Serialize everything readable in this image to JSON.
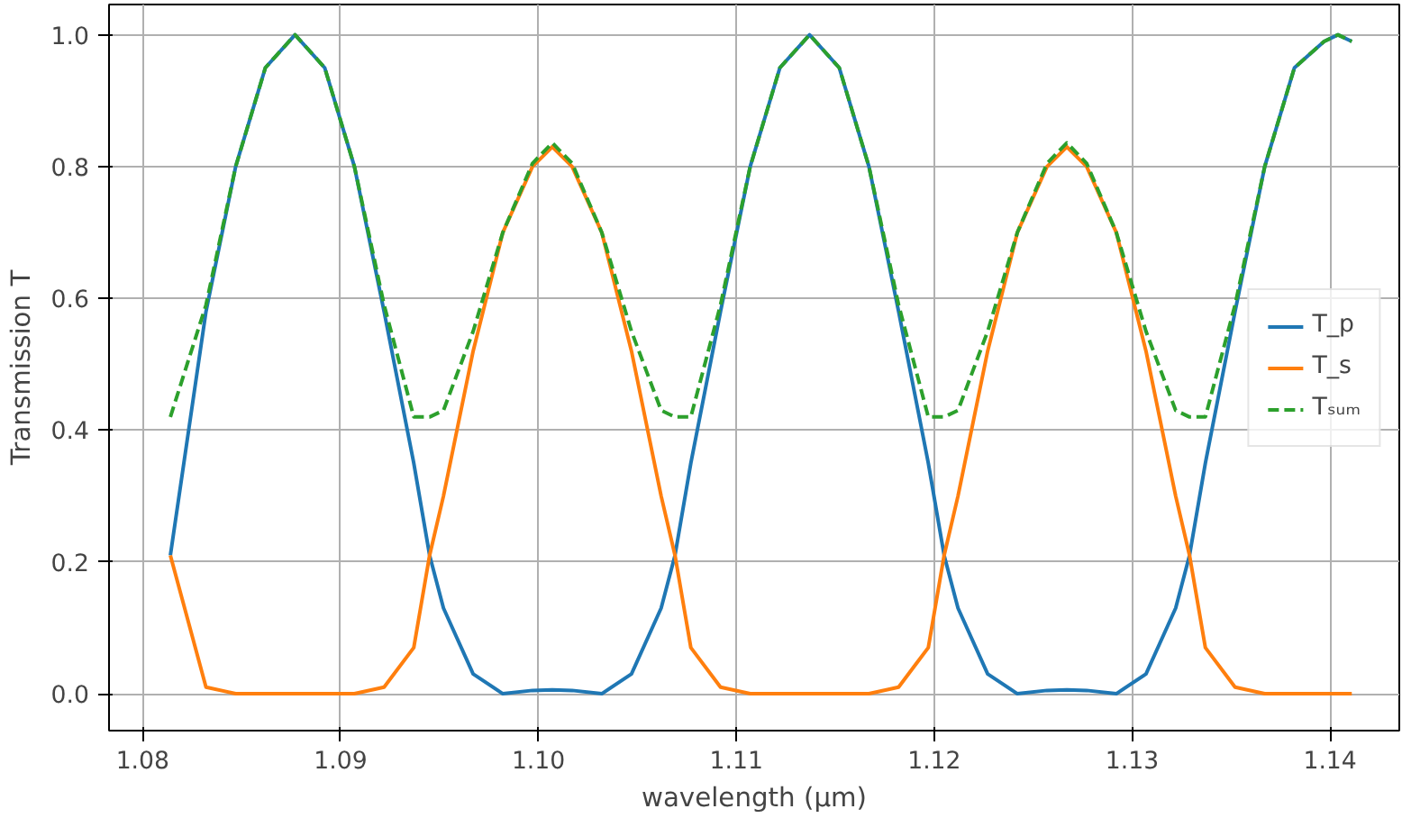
{
  "chart_data": {
    "type": "line",
    "xlabel": "wavelength (µm)",
    "ylabel": "Transmission T",
    "x": [
      1.0814,
      1.0832,
      1.0847,
      1.0862,
      1.0877,
      1.0892,
      1.0907,
      1.0922,
      1.0937,
      1.0945,
      1.0952,
      1.0967,
      1.0982,
      1.0997,
      1.1007,
      1.1017,
      1.1032,
      1.1047,
      1.1062,
      1.1069,
      1.1077,
      1.1092,
      1.1107,
      1.1122,
      1.1137,
      1.1152,
      1.1167,
      1.1182,
      1.1197,
      1.1205,
      1.1212,
      1.1227,
      1.1242,
      1.1257,
      1.1267,
      1.1277,
      1.1292,
      1.1307,
      1.1322,
      1.1329,
      1.1337,
      1.1352,
      1.1367,
      1.1382,
      1.1397,
      1.1404,
      1.1411
    ],
    "series": [
      {
        "name": "T_p",
        "color": "#1f77b4",
        "line_style": "solid",
        "values": [
          0.21,
          0.58,
          0.8,
          0.95,
          1.0,
          0.95,
          0.8,
          0.58,
          0.35,
          0.21,
          0.13,
          0.03,
          0.0,
          0.005,
          0.006,
          0.005,
          0.0,
          0.03,
          0.13,
          0.21,
          0.35,
          0.58,
          0.8,
          0.95,
          1.0,
          0.95,
          0.8,
          0.58,
          0.35,
          0.21,
          0.13,
          0.03,
          0.0,
          0.005,
          0.006,
          0.005,
          0.0,
          0.03,
          0.13,
          0.21,
          0.35,
          0.58,
          0.8,
          0.95,
          0.99,
          1.0,
          0.99
        ]
      },
      {
        "name": "T_s",
        "color": "#ff7f0e",
        "line_style": "solid",
        "values": [
          0.21,
          0.01,
          0.0,
          0.0,
          0.0,
          0.0,
          0.0,
          0.01,
          0.07,
          0.21,
          0.3,
          0.52,
          0.7,
          0.8,
          0.83,
          0.8,
          0.7,
          0.52,
          0.3,
          0.21,
          0.07,
          0.01,
          0.0,
          0.0,
          0.0,
          0.0,
          0.0,
          0.01,
          0.07,
          0.21,
          0.3,
          0.52,
          0.7,
          0.8,
          0.83,
          0.8,
          0.7,
          0.52,
          0.3,
          0.21,
          0.07,
          0.01,
          0.0,
          0.0,
          0.0,
          0.0,
          0.0
        ]
      },
      {
        "name": "Tₛᵤₘ",
        "color": "#2ca02c",
        "line_style": "dashed",
        "values": [
          0.42,
          0.59,
          0.8,
          0.95,
          1.0,
          0.95,
          0.8,
          0.59,
          0.42,
          0.42,
          0.43,
          0.55,
          0.7,
          0.805,
          0.836,
          0.805,
          0.7,
          0.55,
          0.43,
          0.42,
          0.42,
          0.59,
          0.8,
          0.95,
          1.0,
          0.95,
          0.8,
          0.59,
          0.42,
          0.42,
          0.43,
          0.55,
          0.7,
          0.805,
          0.836,
          0.805,
          0.7,
          0.55,
          0.43,
          0.42,
          0.42,
          0.59,
          0.8,
          0.95,
          0.99,
          1.0,
          0.99
        ]
      }
    ],
    "xlim": [
      1.0783,
      1.1435
    ],
    "ylim": [
      -0.056,
      1.046
    ],
    "xticks": [
      1.08,
      1.09,
      {
        "value": 1.1,
        "label": "1.10"
      },
      1.11,
      1.12,
      1.13,
      1.14
    ],
    "yticks": [
      {
        "value": 0,
        "label": "0.0"
      },
      {
        "value": 0.2,
        "label": "0.2"
      },
      {
        "value": 0.4,
        "label": "0.4"
      },
      {
        "value": 0.6,
        "label": "0.6"
      },
      {
        "value": 0.8,
        "label": "0.8"
      },
      {
        "value": 1.0,
        "label": "1.0"
      }
    ],
    "grid": true,
    "legend": "right"
  }
}
